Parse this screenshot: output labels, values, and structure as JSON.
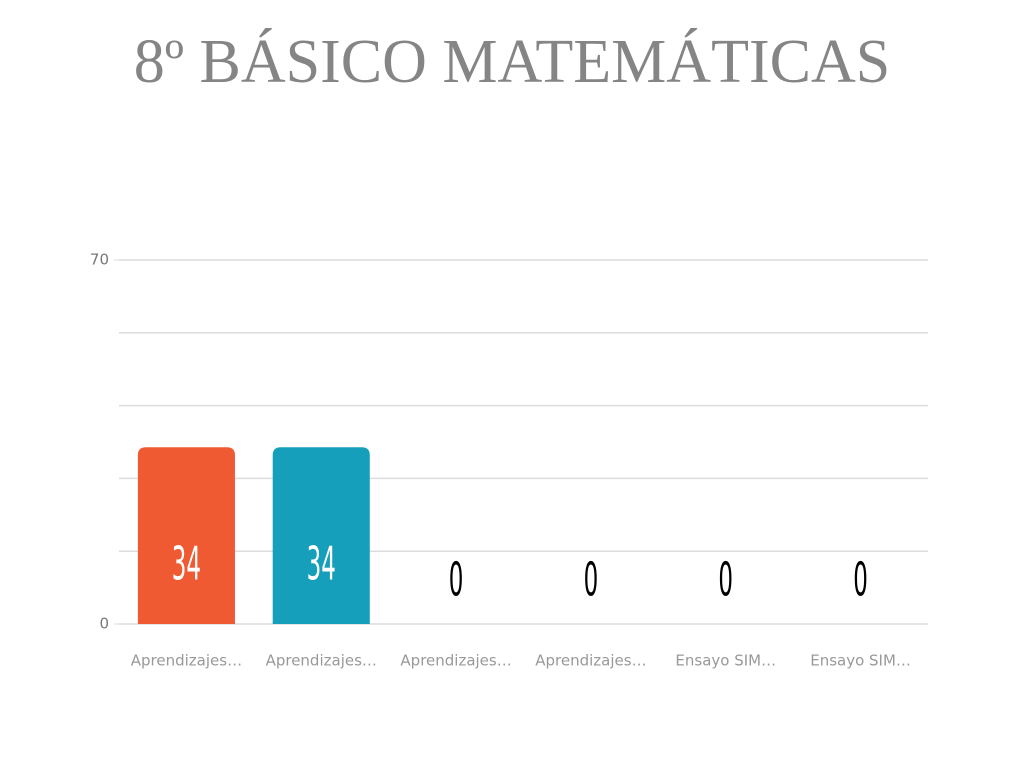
{
  "chart_data": {
    "type": "bar",
    "title": "8º BÁSICO MATEMÁTICAS",
    "categories": [
      "Aprendizajes…",
      "Aprendizajes…",
      "Aprendizajes…",
      "Aprendizajes…",
      "Ensayo SIM…",
      "Ensayo SIM…"
    ],
    "values": [
      34,
      34,
      0,
      0,
      0,
      0
    ],
    "colors": [
      "#f05a33",
      "#169fba",
      "#f05a33",
      "#169fba",
      "#f05a33",
      "#169fba"
    ],
    "ylim": [
      0,
      70
    ],
    "yticks": [
      0,
      70
    ],
    "grid_lines": [
      0,
      14,
      28,
      42,
      56,
      70
    ],
    "grid": true
  }
}
